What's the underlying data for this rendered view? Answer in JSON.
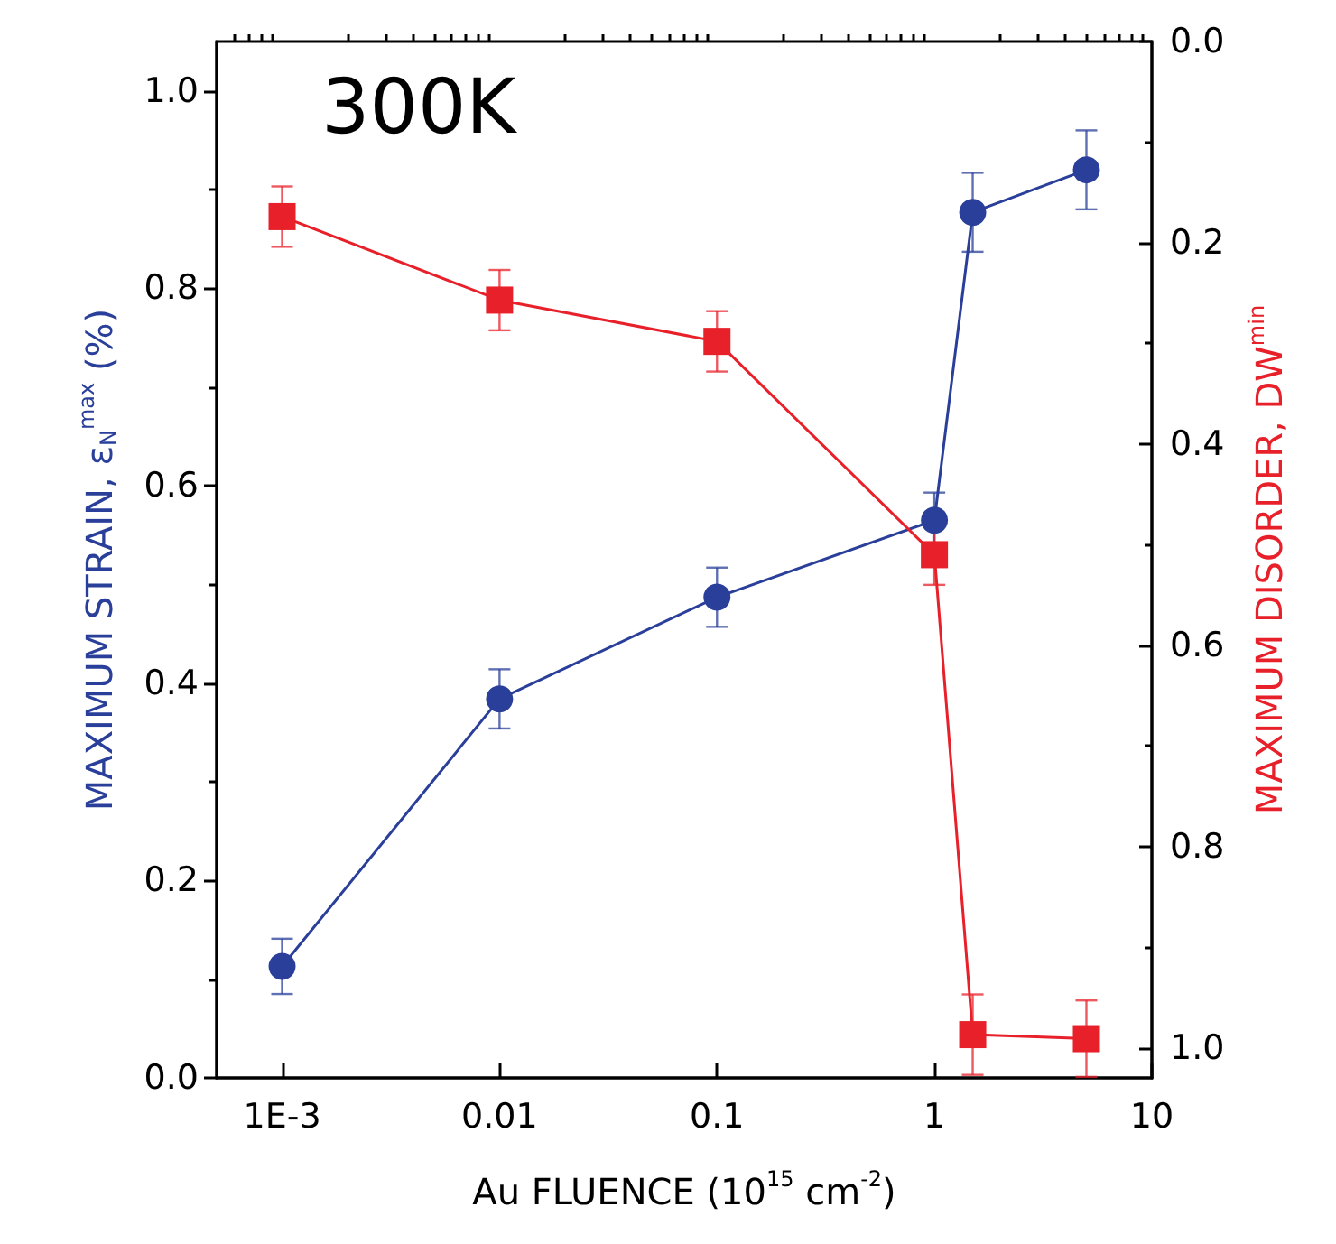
{
  "chart_data": {
    "type": "line",
    "annotations": [
      "300K"
    ],
    "xlabel": "Au FLUENCE (10$^{15}$ cm$^{-2}$)",
    "ylabel": "MAXIMUM STRAIN, ε$_{N}$$^{max}$ (%)",
    "y2label": "MAXIMUM DISORDER, DW$^{min}$",
    "log": "x",
    "xlim": [
      0.0005,
      10
    ],
    "xticks": [
      {
        "value": 0.001,
        "label": "1E-3"
      },
      0.01,
      0.1,
      1,
      10
    ],
    "ylim": [
      0,
      1.05
    ],
    "yticks": [
      {
        "value": 0,
        "label": "0.0"
      },
      0.2,
      0.4,
      0.6,
      0.8,
      {
        "value": 1,
        "label": "1.0"
      }
    ],
    "y2lim": [
      1.03,
      0
    ],
    "y2ticks": [
      {
        "value": 0,
        "label": "0.0"
      },
      0.2,
      0.4,
      0.6,
      0.8,
      {
        "value": 1,
        "label": "1.0"
      }
    ],
    "series": [
      {
        "color": "#2a3f9a",
        "marker": "circle",
        "x": [
          0.001,
          0.01,
          0.1,
          1,
          1.5,
          5
        ],
        "values": [
          0.113,
          0.384,
          0.487,
          0.565,
          0.877,
          0.92
        ],
        "errors": [
          0.028,
          0.03,
          0.03,
          0.028,
          0.04,
          0.04
        ]
      },
      {
        "color": "#e8202a",
        "marker": "square",
        "axis": "y2",
        "x": [
          0.001,
          0.01,
          0.1,
          1,
          1.5,
          5
        ],
        "values": [
          0.174,
          0.257,
          0.298,
          0.51,
          0.987,
          0.991
        ],
        "errors": [
          0.03,
          0.03,
          0.03,
          0.03,
          0.04,
          0.038
        ]
      }
    ]
  }
}
